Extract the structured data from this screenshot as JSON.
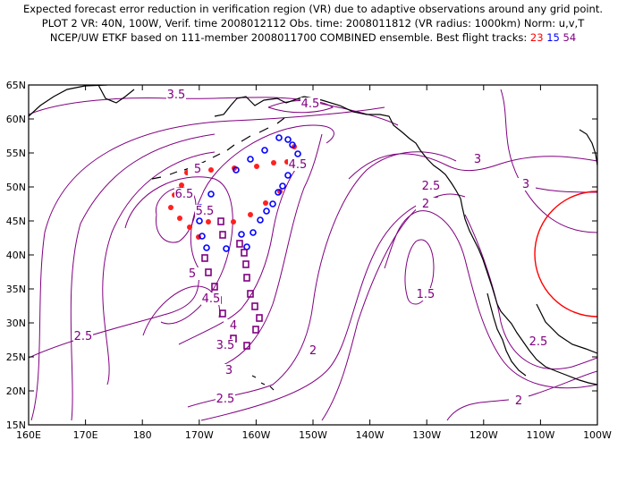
{
  "title": {
    "line1": "Expected forecast error reduction in verification region (VR) due to adaptive observations around any grid point.",
    "line2": "PLOT 2 VR: 40N, 100W, Verif. time 2008012112 Obs. time: 2008011812 (VR radius: 1000km) Norm: u,v,T",
    "line3_prefix": "NCEP/UW ETKF based on 111-member 2008011700 COMBINED ensemble.  Best flight tracks:",
    "track_red": "23",
    "track_blue": "15",
    "track_purple": "54"
  },
  "axes": {
    "lat_labels": [
      "65N",
      "60N",
      "55N",
      "50N",
      "45N",
      "40N",
      "35N",
      "30N",
      "25N",
      "20N",
      "15N"
    ],
    "lon_labels": [
      "160E",
      "170E",
      "180",
      "170W",
      "160W",
      "150W",
      "140W",
      "130W",
      "120W",
      "110W",
      "100W"
    ],
    "lat_range": [
      15,
      65
    ],
    "lon_range": [
      160,
      260
    ]
  },
  "contour_labels": [
    "3.5",
    "4.5",
    "5",
    "6.5",
    "5.5",
    "4.5",
    "5",
    "4.5",
    "4",
    "3.5",
    "3",
    "2.5",
    "2.5",
    "2",
    "3",
    "2.5",
    "2",
    "1.5",
    "3",
    "2.5",
    "2"
  ],
  "colors": {
    "contour": "#800080",
    "coast": "#000000",
    "track_red": "#ff2020",
    "track_blue": "#0000ff",
    "track_purple": "#800080",
    "vr_circle": "#ff0000"
  },
  "verification_region": {
    "center_lat": 40,
    "center_lon": 260,
    "radius_km": 1000
  }
}
